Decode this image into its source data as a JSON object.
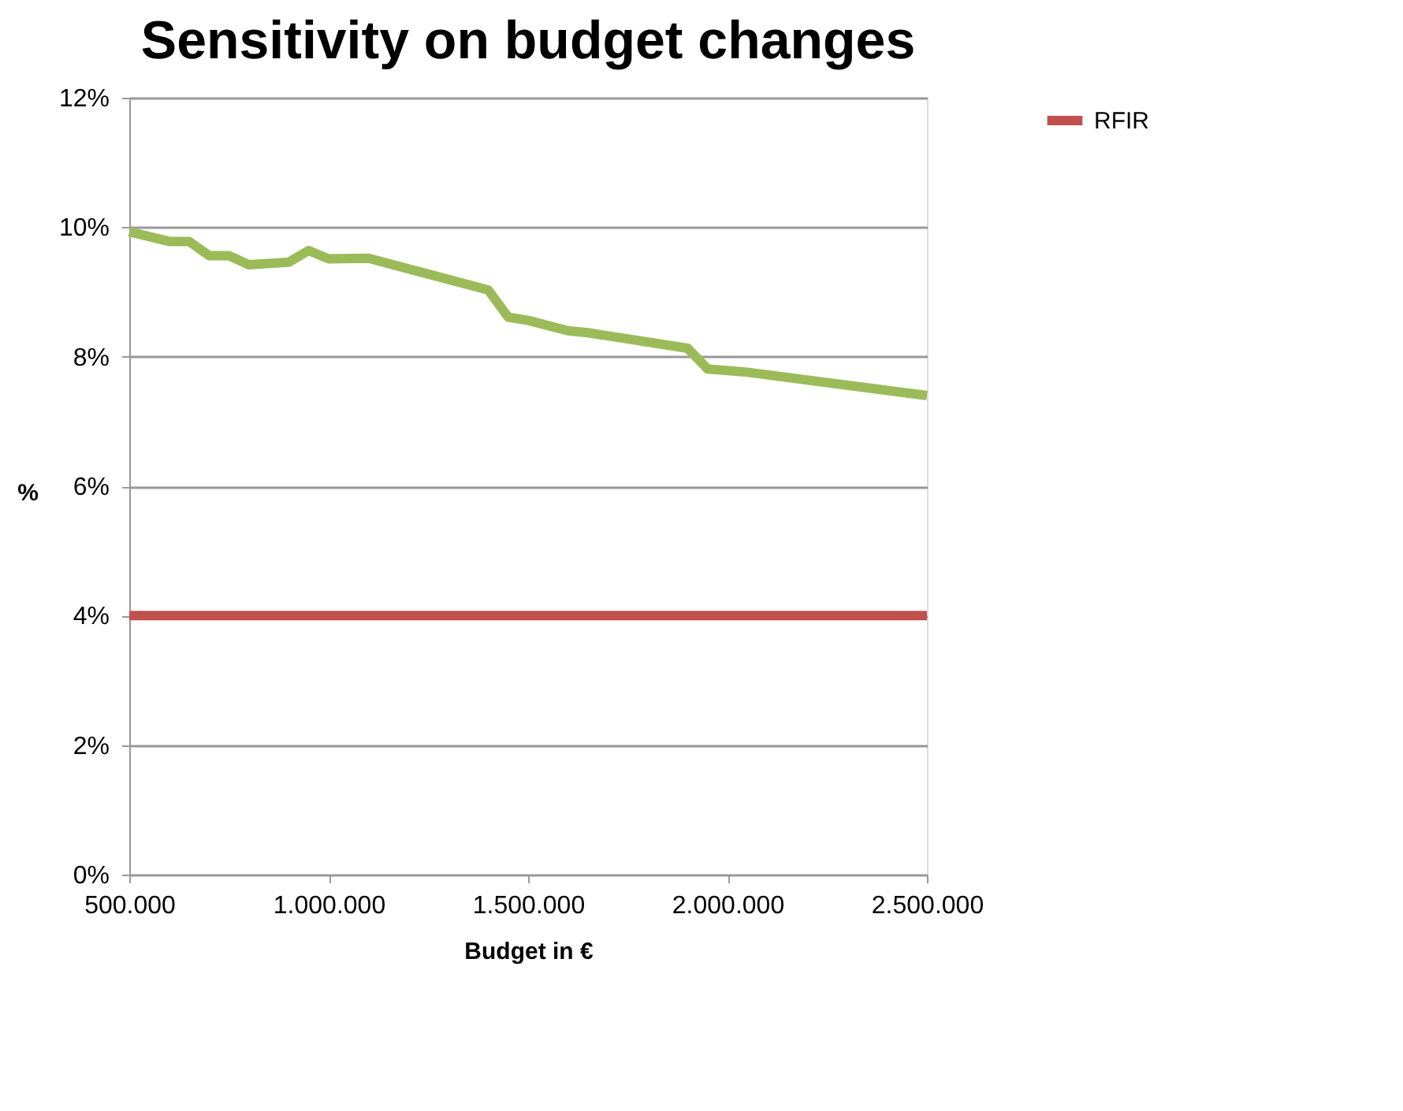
{
  "chart_data": {
    "type": "line",
    "title": "Sensitivity on budget changes",
    "xlabel": "Budget in €",
    "ylabel": "%",
    "xlim": [
      500000,
      2500000
    ],
    "xticks": [
      {
        "value": 500000,
        "label": "500.000"
      },
      {
        "value": 1000000,
        "label": "1.000.000"
      },
      {
        "value": 1500000,
        "label": "1.500.000"
      },
      {
        "value": 2000000,
        "label": "2.000.000"
      },
      {
        "value": 2500000,
        "label": "2.500.000"
      }
    ],
    "ylim": [
      0,
      12
    ],
    "yticks": [
      {
        "value": 0,
        "label": "0%"
      },
      {
        "value": 2,
        "label": "2%"
      },
      {
        "value": 4,
        "label": "4%"
      },
      {
        "value": 6,
        "label": "6%"
      },
      {
        "value": 8,
        "label": "8%"
      },
      {
        "value": 10,
        "label": "10%"
      },
      {
        "value": 12,
        "label": "12%"
      }
    ],
    "grid": "y",
    "legend": "right",
    "marker": "none",
    "line_style": "solid",
    "series": [
      {
        "color": "#9bbb59",
        "x": [
          500000,
          600000,
          650000,
          700000,
          750000,
          800000,
          900000,
          950000,
          1000000,
          1100000,
          1400000,
          1450000,
          1500000,
          1600000,
          1650000,
          1900000,
          1950000,
          2050000,
          2500000
        ],
        "values": [
          9.93,
          9.78,
          9.78,
          9.56,
          9.56,
          9.42,
          9.46,
          9.64,
          9.51,
          9.52,
          9.03,
          8.61,
          8.56,
          8.4,
          8.37,
          8.13,
          7.81,
          7.76,
          7.4
        ]
      },
      {
        "name": "RFIR",
        "color": "#c0504d",
        "x": [
          500000,
          2500000
        ],
        "values": [
          4,
          4
        ]
      }
    ]
  }
}
